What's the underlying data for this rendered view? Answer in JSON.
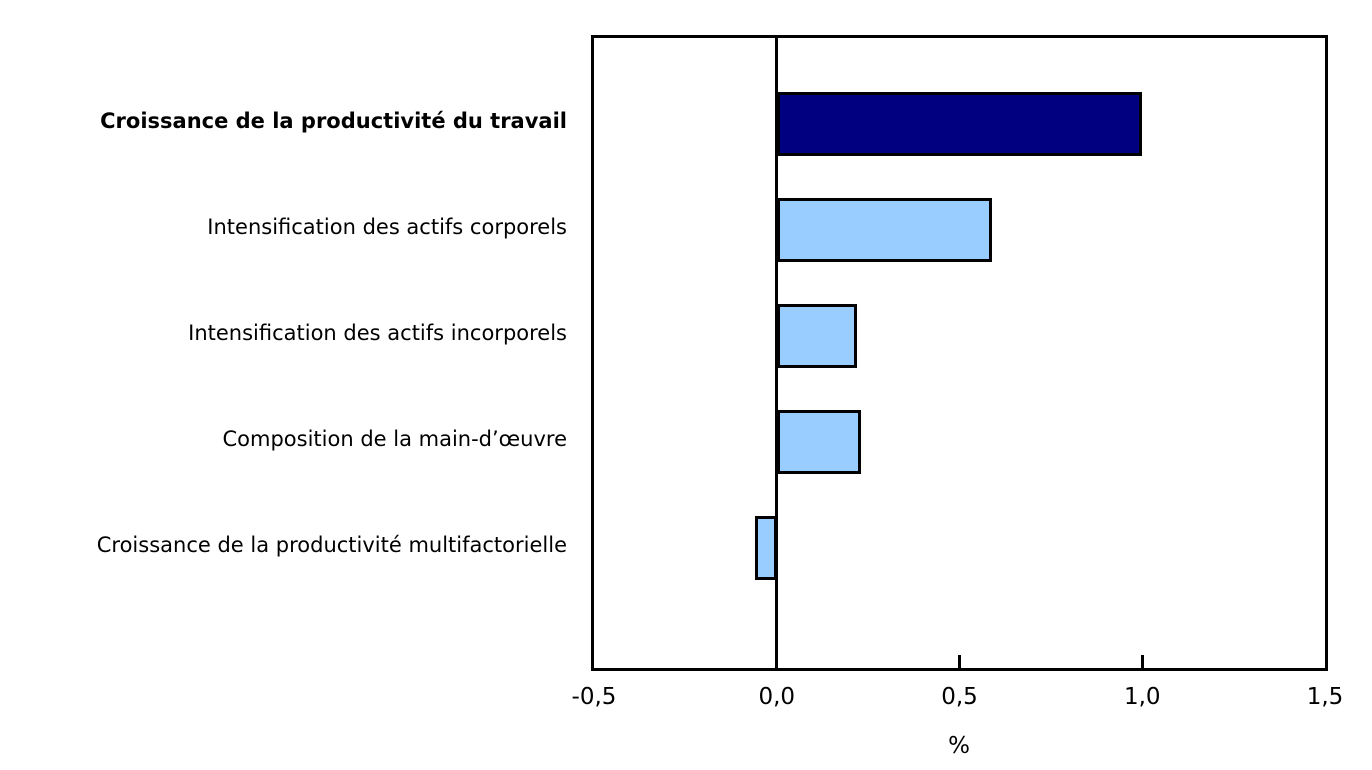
{
  "chart_data": {
    "type": "bar",
    "orientation": "horizontal",
    "title": "",
    "categories": [
      "Croissance de la productivité du travail",
      "Intensification des actifs corporels",
      "Intensification des actifs incorporels",
      "Composition de la main-d’œuvre",
      "Croissance de la productivité multifactorielle"
    ],
    "values": [
      1.0,
      0.59,
      0.22,
      0.23,
      -0.06
    ],
    "emphasized_category_index": 0,
    "xlabel": "%",
    "ylabel": "",
    "xlim": [
      -0.5,
      1.5
    ],
    "xticks": [
      -0.5,
      0.0,
      0.5,
      1.0,
      1.5
    ],
    "xtick_labels": [
      "-0,5",
      "0,0",
      "0,5",
      "1,0",
      "1,5"
    ],
    "grid": false,
    "legend": false,
    "colors": {
      "bar_emphasis": "#000080",
      "bar_default": "#99CCFF",
      "bar_border": "#000000",
      "axis": "#000000"
    }
  }
}
